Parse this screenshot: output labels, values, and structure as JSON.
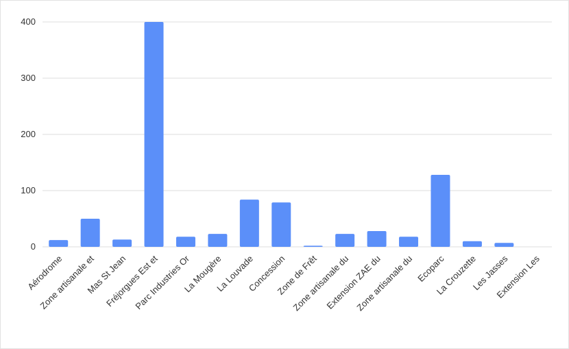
{
  "chart_data": {
    "type": "bar",
    "categories": [
      "Aérodrome",
      "Zone artisanale et",
      "Mas St Jean",
      "Fréjorgues Est et",
      "Parc Industries Or",
      "La Mougère",
      "La Louvade",
      "Concession",
      "Zone de Frêt",
      "Zone artisanale du",
      "Extension ZAE du",
      "Zone artisanale du",
      "Ecoparc",
      "La Crouzette",
      "Les Jasses",
      "Extension Les"
    ],
    "values": [
      12,
      50,
      13,
      400,
      18,
      23,
      84,
      79,
      2,
      23,
      28,
      18,
      128,
      10,
      7,
      0
    ],
    "color": "#5b8ff9",
    "ylim": [
      0,
      400
    ],
    "yticks": [
      0,
      100,
      200,
      300,
      400
    ],
    "grid": true
  }
}
